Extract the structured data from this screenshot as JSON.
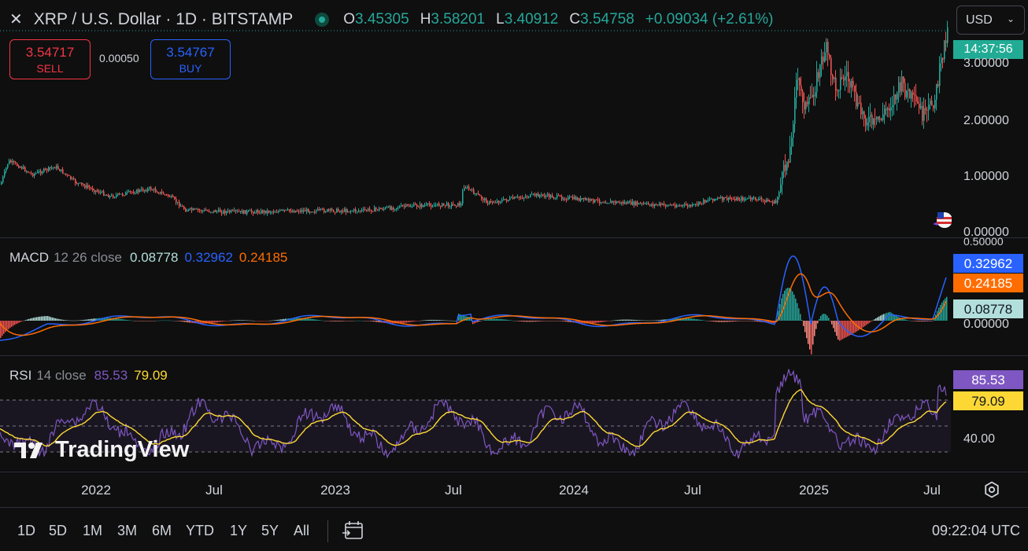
{
  "header": {
    "symbol_title": "XRP / U.S. Dollar · 1D · BITSTAMP",
    "ohlc": [
      {
        "key": "O",
        "value": "3.45305"
      },
      {
        "key": "H",
        "value": "3.58201"
      },
      {
        "key": "L",
        "value": "3.40912"
      },
      {
        "key": "C",
        "value": "3.54758"
      }
    ],
    "change": "+0.09034 (+2.61%)"
  },
  "trade": {
    "sell_price": "3.54717",
    "sell_label": "SELL",
    "spread": "0.00050",
    "buy_price": "3.54767",
    "buy_label": "BUY"
  },
  "currency": {
    "value": "USD"
  },
  "price_axis": {
    "labels": [
      "3.00000",
      "2.00000",
      "1.00000",
      "0.00000"
    ],
    "countdown": "14:37:56",
    "top_label": "0.50000"
  },
  "macd": {
    "name": "MACD",
    "params": "12 26 close",
    "histogram": "0.08778",
    "macd": "0.32962",
    "signal": "0.24185",
    "axis_label": "0.00000"
  },
  "rsi": {
    "name": "RSI",
    "params": "14 close",
    "value": "85.53",
    "ma": "79.09",
    "axis_label": "40.00"
  },
  "watermark": "TradingView",
  "time_axis": [
    "2022",
    "Jul",
    "2023",
    "Jul",
    "2024",
    "Jul",
    "2025",
    "Jul"
  ],
  "ranges": [
    "1D",
    "5D",
    "1M",
    "3M",
    "6M",
    "YTD",
    "1Y",
    "5Y",
    "All"
  ],
  "clock": "09:22:04 UTC",
  "colors": {
    "up": "#26a69a",
    "down": "#ef5350",
    "macd_line": "#2962ff",
    "signal_line": "#ff6d00",
    "rsi_line": "#7e57c2",
    "rsi_ma": "#fdd835"
  },
  "icons": [
    "close-icon",
    "gear-icon",
    "calendar-range-icon",
    "flag-icon"
  ]
}
